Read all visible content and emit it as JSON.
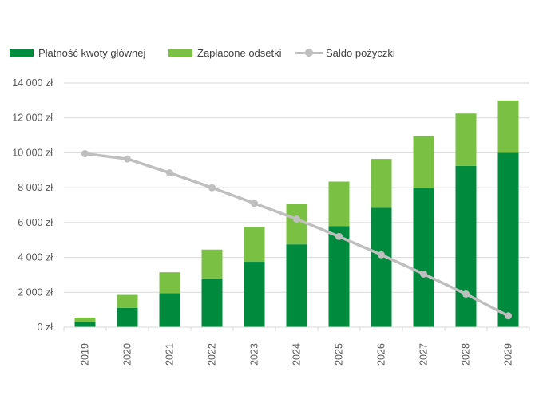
{
  "chart_data": {
    "type": "bar",
    "stacked": true,
    "categories": [
      "2019",
      "2020",
      "2021",
      "2022",
      "2023",
      "2024",
      "2025",
      "2026",
      "2027",
      "2028",
      "2029"
    ],
    "series": [
      {
        "name": "Płatność kwoty głównej",
        "kind": "bar",
        "color": "#008a3e",
        "values": [
          300,
          1100,
          1950,
          2800,
          3750,
          4750,
          5800,
          6850,
          8000,
          9250,
          10000
        ]
      },
      {
        "name": "Zapłacone odsetki",
        "kind": "bar",
        "color": "#7ac143",
        "values": [
          250,
          750,
          1200,
          1650,
          2000,
          2300,
          2550,
          2800,
          2950,
          3000,
          3000
        ]
      },
      {
        "name": "Saldo pożyczki",
        "kind": "line",
        "color": "#bfbfbf",
        "values": [
          9950,
          9650,
          8850,
          8000,
          7100,
          6200,
          5200,
          4150,
          3050,
          1900,
          650
        ]
      }
    ],
    "y_ticks": [
      "0 zł",
      "2 000 zł",
      "4 000 zł",
      "6 000 zł",
      "8 000 zł",
      "10 000 zł",
      "12 000 zł",
      "14 000 zł"
    ],
    "ylim": [
      0,
      14000
    ],
    "y_step": 2000,
    "grid": true,
    "legend_position": "top-left"
  }
}
